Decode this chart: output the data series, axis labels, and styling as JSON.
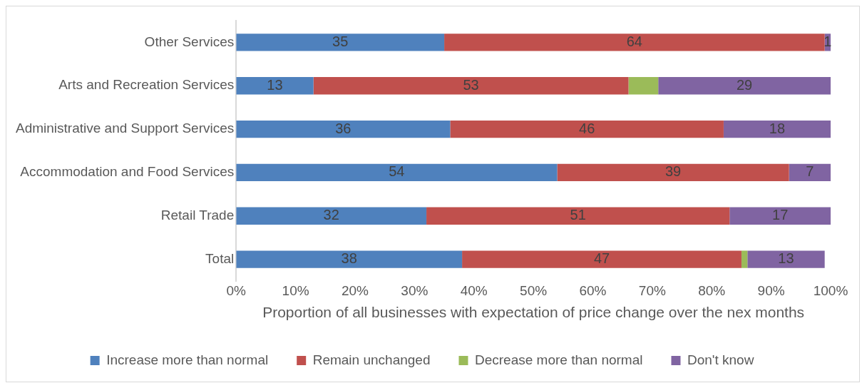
{
  "chart_data": {
    "type": "bar",
    "orientation": "horizontal",
    "stacked": true,
    "categories": [
      "Other Services",
      "Arts and Recreation Services",
      "Administrative and Support Services",
      "Accommodation and Food Services",
      "Retail Trade",
      "Total"
    ],
    "xlabel": "Proportion of all businesses with expectation of price change over the nex months",
    "xlim": [
      0,
      100
    ],
    "xticks": [
      {
        "value": 0,
        "label": "0%"
      },
      {
        "value": 10,
        "label": "10%"
      },
      {
        "value": 20,
        "label": "20%"
      },
      {
        "value": 30,
        "label": "30%"
      },
      {
        "value": 40,
        "label": "40%"
      },
      {
        "value": 50,
        "label": "50%"
      },
      {
        "value": 60,
        "label": "60%"
      },
      {
        "value": 70,
        "label": "70%"
      },
      {
        "value": 80,
        "label": "80%"
      },
      {
        "value": 90,
        "label": "90%"
      },
      {
        "value": 100,
        "label": "100%"
      }
    ],
    "series": [
      {
        "name": "Increase more than normal",
        "color": "#4f81bd",
        "values": [
          35,
          13,
          36,
          54,
          32,
          38
        ],
        "value_labels": [
          "35",
          "13",
          "36",
          "54",
          "32",
          "38"
        ]
      },
      {
        "name": "Remain unchanged",
        "color": "#c0504d",
        "values": [
          64,
          53,
          46,
          39,
          51,
          47
        ],
        "value_labels": [
          "64",
          "53",
          "46",
          "39",
          "51",
          "47"
        ]
      },
      {
        "name": "Decrease more than normal",
        "color": "#9bbb59",
        "values": [
          0,
          5,
          0,
          0,
          0,
          1
        ],
        "value_labels": [
          null,
          null,
          null,
          null,
          null,
          null
        ]
      },
      {
        "name": "Don't know",
        "color": "#8064a2",
        "values": [
          1,
          29,
          18,
          7,
          17,
          13
        ],
        "value_labels": [
          "1",
          "29",
          "18",
          "7",
          "17",
          "13"
        ]
      }
    ],
    "grid": false,
    "legend": "bottom"
  }
}
